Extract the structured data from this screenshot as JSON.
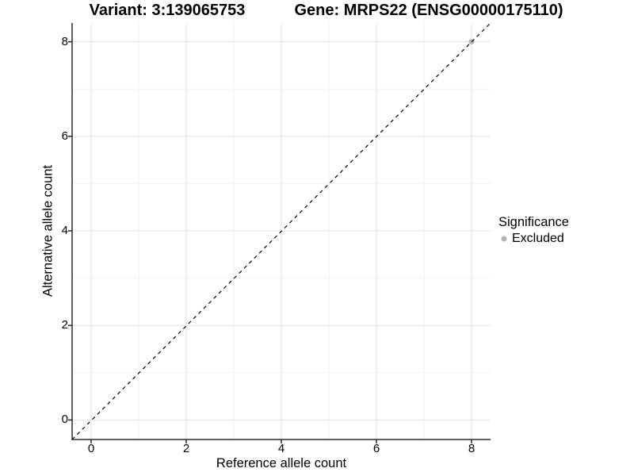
{
  "title_left": "Variant: 3:139065753",
  "title_right": "Gene: MRPS22 (ENSG00000175110)",
  "x_axis": {
    "label": "Reference allele count",
    "ticks": [
      "0",
      "2",
      "4",
      "6",
      "8"
    ]
  },
  "y_axis": {
    "label": "Alternative allele count",
    "ticks": [
      "0",
      "2",
      "4",
      "6",
      "8"
    ]
  },
  "legend": {
    "title": "Significance",
    "items": [
      {
        "label": "Excluded",
        "color": "#b3b3b3"
      }
    ]
  },
  "chart_data": {
    "type": "scatter",
    "title": "Variant: 3:139065753 | Gene: MRPS22 (ENSG00000175110)",
    "xlabel": "Reference allele count",
    "ylabel": "Alternative allele count",
    "xlim": [
      -0.4,
      8.4
    ],
    "ylim": [
      -0.4,
      8.4
    ],
    "x_ticks": [
      0,
      2,
      4,
      6,
      8
    ],
    "y_ticks": [
      0,
      2,
      4,
      6,
      8
    ],
    "grid": "major and minor gridlines, light gray on white panel",
    "legend_position": "right",
    "series": [
      {
        "name": "Excluded",
        "marker": "circle",
        "color": "#b3b3b3",
        "points": [
          [
            8,
            8
          ]
        ]
      }
    ],
    "reference_line": {
      "slope": 1,
      "intercept": 0,
      "style": "dashed",
      "color": "#000000"
    }
  },
  "colors": {
    "background": "#ffffff",
    "grid_major": "#e2e2e2",
    "grid_minor": "#f2f2f2",
    "axis_line": "#2b2b2b",
    "point_excluded": "#b3b3b3"
  }
}
